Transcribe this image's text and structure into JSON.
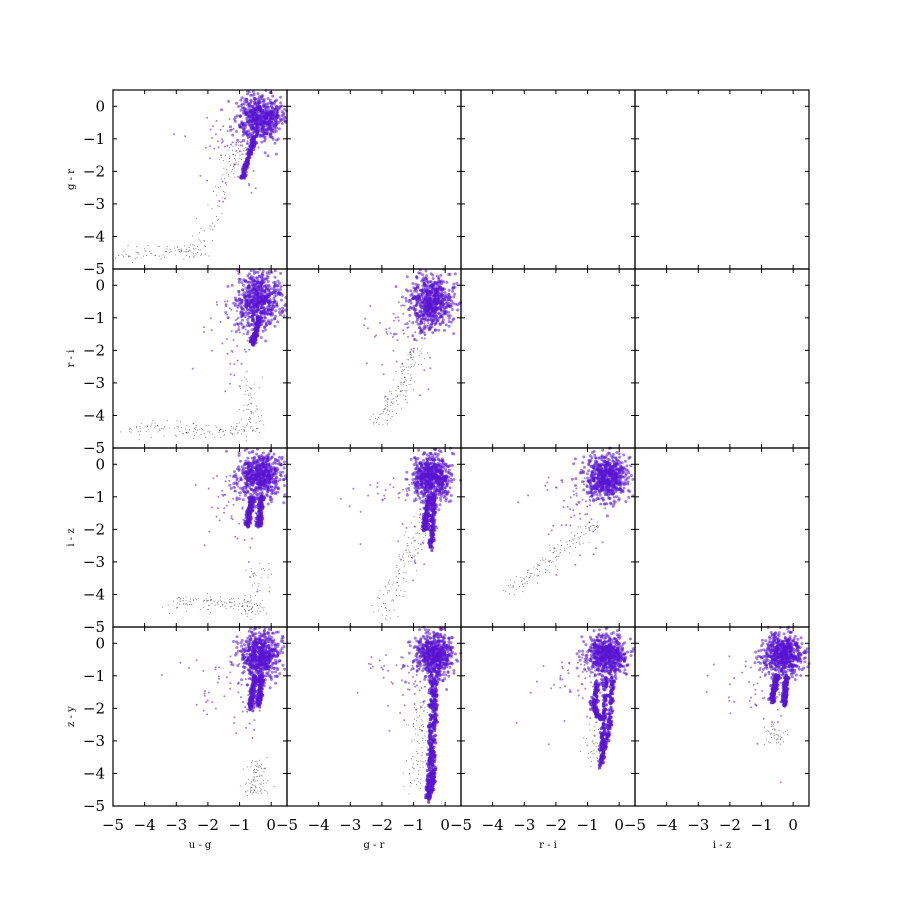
{
  "chart_data": {
    "type": "scatter",
    "layout": "lower-triangle scatter matrix, 4 rows x 4 columns",
    "axes_labels": [
      "u - g",
      "g - r",
      "r - i",
      "i - z",
      "z - y"
    ],
    "xlim": [
      -5,
      0.5
    ],
    "ylim": [
      -5,
      0.5
    ],
    "x_ticks": [
      "−5",
      "−4",
      "−3",
      "−2",
      "−1",
      "0"
    ],
    "y_ticks": [
      "0",
      "−1",
      "−2",
      "−3",
      "−4",
      "−5"
    ],
    "grid": false,
    "legend": "none",
    "colors": {
      "highlight": "#5a14d2",
      "background": "#000000",
      "frame": "#000000"
    },
    "series": [
      {
        "role": "highlighted",
        "color": "#5a14d2",
        "style": "dense round markers"
      },
      {
        "role": "background",
        "color": "#000000",
        "style": "sparse tiny points"
      }
    ],
    "panels": [
      {
        "row": 0,
        "col": 0,
        "x": "u - g",
        "y": "g - r",
        "populated": true,
        "cluster_center": [
          -0.35,
          -0.35
        ],
        "cluster_spread": [
          0.35,
          0.35
        ],
        "tails": [
          [
            [
              -0.5,
              -0.9
            ],
            [
              -0.7,
              -1.5
            ],
            [
              -0.9,
              -2.2
            ]
          ]
        ],
        "background_band": [
          [
            -4.8,
            -4.6
          ],
          [
            -3.0,
            -4.5
          ],
          [
            -2.2,
            -4.4
          ],
          [
            -1.3,
            -2.0
          ],
          [
            -1.0,
            -1.0
          ]
        ]
      },
      {
        "row": 0,
        "col": 1,
        "populated": false
      },
      {
        "row": 0,
        "col": 2,
        "populated": false
      },
      {
        "row": 0,
        "col": 3,
        "populated": false
      },
      {
        "row": 1,
        "col": 0,
        "x": "u - g",
        "y": "r - i",
        "populated": true,
        "cluster_center": [
          -0.4,
          -0.45
        ],
        "cluster_spread": [
          0.35,
          0.4
        ],
        "tails": [
          [
            [
              -0.4,
              -1.0
            ],
            [
              -0.5,
              -1.5
            ],
            [
              -0.6,
              -1.8
            ]
          ]
        ],
        "background_band": [
          [
            -4.5,
            -4.4
          ],
          [
            -3.0,
            -4.4
          ],
          [
            -1.5,
            -4.5
          ],
          [
            -0.5,
            -4.4
          ],
          [
            -0.8,
            -2.5
          ]
        ]
      },
      {
        "row": 1,
        "col": 1,
        "x": "g - r",
        "y": "r - i",
        "populated": true,
        "cluster_center": [
          -0.45,
          -0.5
        ],
        "cluster_spread": [
          0.35,
          0.4
        ],
        "tails": [],
        "background_band": [
          [
            -2.2,
            -4.2
          ],
          [
            -1.6,
            -3.5
          ],
          [
            -1.2,
            -2.8
          ],
          [
            -0.9,
            -2.0
          ]
        ]
      },
      {
        "row": 1,
        "col": 2,
        "populated": false
      },
      {
        "row": 1,
        "col": 3,
        "populated": false
      },
      {
        "row": 2,
        "col": 0,
        "x": "u - g",
        "y": "i - z",
        "populated": true,
        "cluster_center": [
          -0.35,
          -0.35
        ],
        "cluster_spread": [
          0.35,
          0.35
        ],
        "tails": [
          [
            [
              -0.6,
              -1.0
            ],
            [
              -0.7,
              -1.5
            ],
            [
              -0.75,
              -1.9
            ]
          ],
          [
            [
              -0.3,
              -1.0
            ],
            [
              -0.35,
              -1.6
            ],
            [
              -0.4,
              -1.9
            ]
          ]
        ],
        "background_band": [
          [
            -3.2,
            -4.3
          ],
          [
            -2.0,
            -4.2
          ],
          [
            -1.0,
            -4.3
          ],
          [
            -0.5,
            -4.5
          ],
          [
            -0.3,
            -3.0
          ]
        ]
      },
      {
        "row": 2,
        "col": 1,
        "x": "g - r",
        "y": "i - z",
        "populated": true,
        "cluster_center": [
          -0.4,
          -0.4
        ],
        "cluster_spread": [
          0.3,
          0.35
        ],
        "tails": [
          [
            [
              -0.5,
              -1.0
            ],
            [
              -0.6,
              -1.6
            ],
            [
              -0.65,
              -2.0
            ]
          ],
          [
            [
              -0.35,
              -1.0
            ],
            [
              -0.4,
              -1.8
            ],
            [
              -0.45,
              -2.6
            ]
          ]
        ],
        "background_band": [
          [
            -2.0,
            -4.7
          ],
          [
            -1.5,
            -3.5
          ],
          [
            -1.0,
            -2.5
          ],
          [
            -0.6,
            -1.5
          ]
        ]
      },
      {
        "row": 2,
        "col": 2,
        "x": "r - i",
        "y": "i - z",
        "populated": true,
        "cluster_center": [
          -0.4,
          -0.4
        ],
        "cluster_spread": [
          0.35,
          0.35
        ],
        "tails": [],
        "background_band": [
          [
            -3.5,
            -3.9
          ],
          [
            -2.5,
            -3.2
          ],
          [
            -1.5,
            -2.5
          ],
          [
            -0.8,
            -1.8
          ]
        ]
      },
      {
        "row": 2,
        "col": 3,
        "populated": false
      },
      {
        "row": 3,
        "col": 0,
        "x": "u - g",
        "y": "z - y",
        "populated": true,
        "cluster_center": [
          -0.35,
          -0.4
        ],
        "cluster_spread": [
          0.3,
          0.35
        ],
        "tails": [
          [
            [
              -0.5,
              -1.0
            ],
            [
              -0.6,
              -1.5
            ],
            [
              -0.65,
              -2.0
            ]
          ],
          [
            [
              -0.3,
              -1.0
            ],
            [
              -0.35,
              -1.5
            ],
            [
              -0.4,
              -1.9
            ]
          ]
        ],
        "background_band": [
          [
            -0.6,
            -4.6
          ],
          [
            -0.4,
            -4.3
          ],
          [
            -0.5,
            -3.6
          ]
        ]
      },
      {
        "row": 3,
        "col": 1,
        "x": "g - r",
        "y": "z - y",
        "populated": true,
        "cluster_center": [
          -0.35,
          -0.35
        ],
        "cluster_spread": [
          0.3,
          0.35
        ],
        "tails": [
          [
            [
              -0.4,
              -1.0
            ],
            [
              -0.45,
              -2.5
            ],
            [
              -0.5,
              -4.0
            ],
            [
              -0.55,
              -4.8
            ]
          ],
          [
            [
              -0.3,
              -1.0
            ],
            [
              -0.35,
              -2.5
            ],
            [
              -0.4,
              -4.0
            ],
            [
              -0.45,
              -4.6
            ]
          ]
        ],
        "background_band": [
          [
            -1.0,
            -4.5
          ],
          [
            -0.8,
            -3.0
          ],
          [
            -0.7,
            -1.8
          ]
        ]
      },
      {
        "row": 3,
        "col": 2,
        "x": "r - i",
        "y": "z - y",
        "populated": true,
        "cluster_center": [
          -0.4,
          -0.35
        ],
        "cluster_spread": [
          0.3,
          0.3
        ],
        "tails": [
          [
            [
              -0.7,
              -1.2
            ],
            [
              -0.8,
              -2.0
            ],
            [
              -0.6,
              -2.3
            ]
          ],
          [
            [
              -0.4,
              -1.0
            ],
            [
              -0.5,
              -2.5
            ],
            [
              -0.6,
              -3.8
            ]
          ],
          [
            [
              -0.2,
              -1.0
            ],
            [
              -0.3,
              -2.5
            ],
            [
              -0.55,
              -3.6
            ]
          ]
        ],
        "background_band": [
          [
            -0.9,
            -3.5
          ],
          [
            -0.7,
            -2.5
          ]
        ]
      },
      {
        "row": 3,
        "col": 3,
        "x": "i - z",
        "y": "z - y",
        "populated": true,
        "cluster_center": [
          -0.3,
          -0.35
        ],
        "cluster_spread": [
          0.3,
          0.3
        ],
        "tails": [
          [
            [
              -0.5,
              -1.0
            ],
            [
              -0.6,
              -1.4
            ],
            [
              -0.65,
              -1.8
            ]
          ],
          [
            [
              -0.2,
              -1.0
            ],
            [
              -0.25,
              -1.5
            ],
            [
              -0.3,
              -1.9
            ]
          ]
        ],
        "background_band": [
          [
            -0.7,
            -2.6
          ],
          [
            -0.5,
            -3.0
          ]
        ]
      }
    ]
  }
}
